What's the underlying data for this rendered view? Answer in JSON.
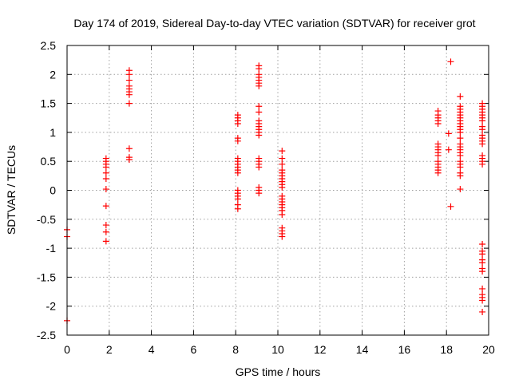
{
  "chart_data": {
    "type": "scatter",
    "title": "Day 174 of 2019, Sidereal Day-to-day VTEC variation (SDTVAR) for receiver grot",
    "xlabel": "GPS time / hours",
    "ylabel": "SDTVAR / TECUs",
    "xlim": [
      0,
      20
    ],
    "ylim": [
      -2.5,
      2.5
    ],
    "xticks": [
      0,
      2,
      4,
      6,
      8,
      10,
      12,
      14,
      16,
      18,
      20
    ],
    "yticks": [
      -2.5,
      -2,
      -1.5,
      -1,
      -0.5,
      0,
      0.5,
      1,
      1.5,
      2,
      2.5
    ],
    "grid": true,
    "marker": "+",
    "color": "#ff0000",
    "series": [
      {
        "name": "SDTVAR",
        "points": [
          [
            0.0,
            -0.68
          ],
          [
            0.0,
            -0.8
          ],
          [
            0.0,
            -2.25
          ],
          [
            1.85,
            0.55
          ],
          [
            1.85,
            0.5
          ],
          [
            1.85,
            0.45
          ],
          [
            1.85,
            0.4
          ],
          [
            1.85,
            0.3
          ],
          [
            1.85,
            0.2
          ],
          [
            1.85,
            0.02
          ],
          [
            1.85,
            -0.27
          ],
          [
            1.85,
            -0.6
          ],
          [
            1.85,
            -0.72
          ],
          [
            1.85,
            -0.88
          ],
          [
            2.95,
            2.07
          ],
          [
            2.95,
            2.0
          ],
          [
            2.95,
            1.9
          ],
          [
            2.95,
            1.8
          ],
          [
            2.95,
            1.75
          ],
          [
            2.95,
            1.7
          ],
          [
            2.95,
            1.65
          ],
          [
            2.95,
            1.5
          ],
          [
            2.95,
            0.72
          ],
          [
            2.95,
            0.57
          ],
          [
            2.95,
            0.53
          ],
          [
            8.1,
            1.3
          ],
          [
            8.1,
            1.25
          ],
          [
            8.1,
            1.2
          ],
          [
            8.1,
            1.15
          ],
          [
            8.1,
            0.9
          ],
          [
            8.1,
            0.85
          ],
          [
            8.1,
            0.55
          ],
          [
            8.1,
            0.5
          ],
          [
            8.1,
            0.45
          ],
          [
            8.1,
            0.4
          ],
          [
            8.1,
            0.35
          ],
          [
            8.1,
            0.3
          ],
          [
            8.1,
            0.0
          ],
          [
            8.1,
            -0.05
          ],
          [
            8.1,
            -0.1
          ],
          [
            8.1,
            -0.15
          ],
          [
            8.1,
            -0.25
          ],
          [
            8.1,
            -0.32
          ],
          [
            9.1,
            2.15
          ],
          [
            9.1,
            2.1
          ],
          [
            9.1,
            2.0
          ],
          [
            9.1,
            1.95
          ],
          [
            9.1,
            1.9
          ],
          [
            9.1,
            1.85
          ],
          [
            9.1,
            1.8
          ],
          [
            9.1,
            1.45
          ],
          [
            9.1,
            1.35
          ],
          [
            9.1,
            1.2
          ],
          [
            9.1,
            1.15
          ],
          [
            9.1,
            1.1
          ],
          [
            9.1,
            1.05
          ],
          [
            9.1,
            1.0
          ],
          [
            9.1,
            0.95
          ],
          [
            9.1,
            0.55
          ],
          [
            9.1,
            0.5
          ],
          [
            9.1,
            0.45
          ],
          [
            9.1,
            0.4
          ],
          [
            9.1,
            0.05
          ],
          [
            9.1,
            0.0
          ],
          [
            9.1,
            -0.05
          ],
          [
            10.2,
            0.68
          ],
          [
            10.2,
            0.55
          ],
          [
            10.2,
            0.45
          ],
          [
            10.2,
            0.35
          ],
          [
            10.2,
            0.3
          ],
          [
            10.2,
            0.25
          ],
          [
            10.2,
            0.2
          ],
          [
            10.2,
            0.15
          ],
          [
            10.2,
            0.1
          ],
          [
            10.2,
            0.05
          ],
          [
            10.2,
            -0.1
          ],
          [
            10.2,
            -0.15
          ],
          [
            10.2,
            -0.2
          ],
          [
            10.2,
            -0.25
          ],
          [
            10.2,
            -0.3
          ],
          [
            10.2,
            -0.35
          ],
          [
            10.2,
            -0.42
          ],
          [
            10.2,
            -0.65
          ],
          [
            10.2,
            -0.7
          ],
          [
            10.2,
            -0.75
          ],
          [
            10.2,
            -0.8
          ],
          [
            17.6,
            1.37
          ],
          [
            17.6,
            1.3
          ],
          [
            17.6,
            1.25
          ],
          [
            17.6,
            1.2
          ],
          [
            17.6,
            1.15
          ],
          [
            17.6,
            0.8
          ],
          [
            17.6,
            0.75
          ],
          [
            17.6,
            0.7
          ],
          [
            17.6,
            0.65
          ],
          [
            17.6,
            0.6
          ],
          [
            17.6,
            0.5
          ],
          [
            17.6,
            0.45
          ],
          [
            17.6,
            0.4
          ],
          [
            17.6,
            0.35
          ],
          [
            17.6,
            0.3
          ],
          [
            18.2,
            2.22
          ],
          [
            18.1,
            0.98
          ],
          [
            18.1,
            0.7
          ],
          [
            18.2,
            -0.28
          ],
          [
            18.65,
            1.62
          ],
          [
            18.65,
            1.45
          ],
          [
            18.65,
            1.4
          ],
          [
            18.65,
            1.35
          ],
          [
            18.65,
            1.3
          ],
          [
            18.65,
            1.25
          ],
          [
            18.65,
            1.2
          ],
          [
            18.65,
            1.15
          ],
          [
            18.65,
            1.1
          ],
          [
            18.65,
            1.05
          ],
          [
            18.65,
            1.0
          ],
          [
            18.65,
            0.9
          ],
          [
            18.65,
            0.8
          ],
          [
            18.65,
            0.75
          ],
          [
            18.65,
            0.7
          ],
          [
            18.65,
            0.65
          ],
          [
            18.65,
            0.6
          ],
          [
            18.65,
            0.5
          ],
          [
            18.65,
            0.45
          ],
          [
            18.65,
            0.4
          ],
          [
            18.65,
            0.3
          ],
          [
            18.65,
            0.25
          ],
          [
            18.65,
            0.02
          ],
          [
            19.7,
            1.5
          ],
          [
            19.7,
            1.45
          ],
          [
            19.7,
            1.4
          ],
          [
            19.7,
            1.35
          ],
          [
            19.7,
            1.3
          ],
          [
            19.7,
            1.25
          ],
          [
            19.7,
            1.2
          ],
          [
            19.7,
            1.1
          ],
          [
            19.7,
            1.05
          ],
          [
            19.7,
            0.95
          ],
          [
            19.7,
            0.9
          ],
          [
            19.7,
            0.85
          ],
          [
            19.7,
            0.8
          ],
          [
            19.7,
            0.6
          ],
          [
            19.7,
            0.55
          ],
          [
            19.7,
            0.5
          ],
          [
            19.7,
            0.45
          ],
          [
            19.7,
            -0.93
          ],
          [
            19.7,
            -1.05
          ],
          [
            19.7,
            -1.1
          ],
          [
            19.7,
            -1.2
          ],
          [
            19.7,
            -1.25
          ],
          [
            19.7,
            -1.35
          ],
          [
            19.7,
            -1.4
          ],
          [
            19.7,
            -1.7
          ],
          [
            19.7,
            -1.8
          ],
          [
            19.7,
            -1.85
          ],
          [
            19.7,
            -1.9
          ],
          [
            19.7,
            -2.1
          ]
        ]
      }
    ]
  }
}
